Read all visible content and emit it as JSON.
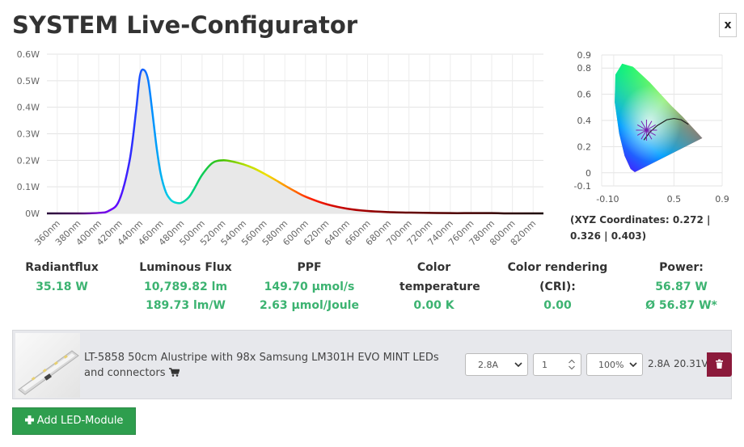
{
  "title": "SYSTEM Live-Configurator",
  "close_label": "x",
  "chart_data": [
    {
      "type": "area",
      "y_ticks": [
        "0W",
        "0.1W",
        "0.2W",
        "0.3W",
        "0.4W",
        "0.5W",
        "0.6W"
      ],
      "x_ticks": [
        "360nm",
        "380nm",
        "400nm",
        "420nm",
        "440nm",
        "460nm",
        "480nm",
        "500nm",
        "520nm",
        "540nm",
        "560nm",
        "580nm",
        "600nm",
        "620nm",
        "640nm",
        "660nm",
        "680nm",
        "700nm",
        "720nm",
        "740nm",
        "760nm",
        "780nm",
        "800nm",
        "820nm"
      ],
      "xlim": [
        350,
        830
      ],
      "ylim": [
        0,
        0.6
      ],
      "grid": true,
      "x": [
        350,
        380,
        400,
        410,
        420,
        430,
        436,
        440,
        444,
        448,
        452,
        456,
        460,
        465,
        470,
        475,
        480,
        487,
        492,
        500,
        510,
        520,
        530,
        540,
        550,
        560,
        570,
        580,
        590,
        600,
        620,
        640,
        660,
        680,
        700,
        720,
        740,
        760,
        780,
        800,
        830
      ],
      "y": [
        0.0,
        0.0,
        0.002,
        0.01,
        0.05,
        0.2,
        0.38,
        0.52,
        0.54,
        0.5,
        0.38,
        0.25,
        0.15,
        0.08,
        0.05,
        0.04,
        0.04,
        0.06,
        0.09,
        0.145,
        0.19,
        0.2,
        0.195,
        0.185,
        0.17,
        0.15,
        0.128,
        0.105,
        0.083,
        0.063,
        0.035,
        0.018,
        0.009,
        0.005,
        0.003,
        0.002,
        0.001,
        0.001,
        0.001,
        0.0,
        0.0
      ]
    },
    {
      "type": "scatter",
      "x_ticks": [
        "-0.1",
        "0",
        "0.5",
        "0.9"
      ],
      "y_ticks": [
        "0.9",
        "0.8",
        "0.6",
        "0.4",
        "0.2",
        "0",
        "-0.1"
      ],
      "xlim": [
        -0.1,
        0.9
      ],
      "ylim": [
        -0.1,
        0.9
      ],
      "grid": true,
      "point": {
        "x": 0.272,
        "y": 0.326
      }
    }
  ],
  "xyz_text": "(XYZ Coordinates: 0.272 | 0.326 | 0.403)",
  "stats": [
    {
      "label": "Radiantflux",
      "values": [
        "35.18 W"
      ]
    },
    {
      "label": "Luminous Flux",
      "values": [
        "10,789.82 lm",
        "189.73 lm/W"
      ]
    },
    {
      "label": "PPF",
      "values": [
        "149.70 µmol/s",
        "2.63 µmol/Joule"
      ]
    },
    {
      "label": "Color temperature",
      "values": [
        "0.00 K"
      ]
    },
    {
      "label": "Color rendering (CRI):",
      "values": [
        "0.00"
      ]
    },
    {
      "label": "Power:",
      "values": [
        "56.87 W",
        "Ø 56.87 W*"
      ]
    }
  ],
  "module": {
    "title": "LT-5858 50cm Alustripe with 98x Samsung LM301H EVO MINT LEDs and connectors",
    "current_select": "2.8A",
    "quantity": "1",
    "dim_select": "100%",
    "current_readout": "2.8A",
    "voltage_readout": "20.31V"
  },
  "add_button": "Add LED-Module",
  "icons": {
    "cart": "cart-icon",
    "trash": "trash-icon",
    "plus": "plus-icon"
  },
  "colors": {
    "accent_green": "#3cb371",
    "delete_red": "#8b1a3b",
    "add_green": "#2e9e4e"
  }
}
